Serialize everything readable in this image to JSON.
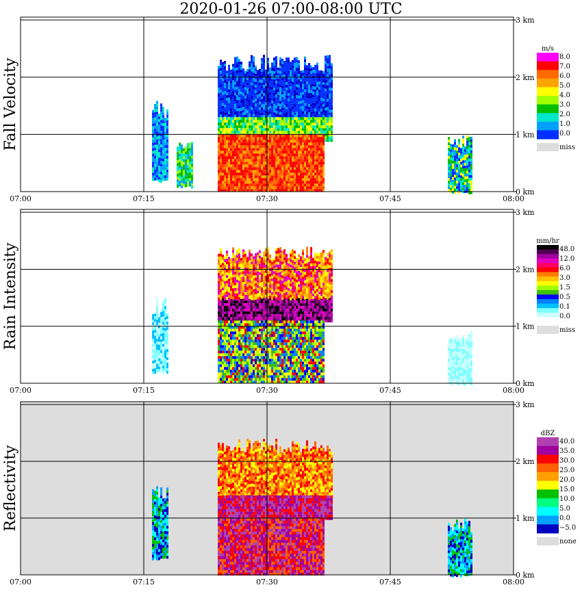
{
  "title": "2020-01-26   07:00-08:00 UTC",
  "x_ticks": [
    "07:00",
    "07:15",
    "07:30",
    "07:45",
    "08:00"
  ],
  "y_ticks": [
    "0 km",
    "1 km",
    "2 km",
    "3 km"
  ],
  "chart_data": [
    {
      "type": "heatmap",
      "title": "Fall Velocity",
      "ylabel": "Fall Velocity",
      "xlim": [
        "07:00",
        "08:00"
      ],
      "ylim": [
        0,
        3.0
      ],
      "grid": true,
      "legend": {
        "unit": "m/s",
        "placement": "right",
        "labels": [
          "8.0",
          "7.0",
          "6.0",
          "5.0",
          "4.0",
          "3.0",
          "2.0",
          "1.0",
          "0.0",
          "miss"
        ],
        "colors": [
          "#ff00ff",
          "#ff0000",
          "#ff6a00",
          "#ffa500",
          "#ffff00",
          "#a0ff00",
          "#00c000",
          "#00e8c8",
          "#00a0ff",
          "#0030ff",
          "#dddddd"
        ]
      },
      "regions": [
        {
          "name": "echo-left-1",
          "x": [
            "07:16",
            "07:18"
          ],
          "y": [
            0.2,
            1.6
          ],
          "value": "1.0-2.0"
        },
        {
          "name": "echo-left-2",
          "x": [
            "07:19",
            "07:21"
          ],
          "y": [
            0.1,
            0.9
          ],
          "value": "2.0-5.0"
        },
        {
          "name": "main-upper",
          "x": [
            "07:24",
            "07:38"
          ],
          "y": [
            1.2,
            2.4
          ],
          "value": "0.0-2.0"
        },
        {
          "name": "main-middle",
          "x": [
            "07:24",
            "07:38"
          ],
          "y": [
            0.9,
            1.3
          ],
          "value": "3.0-5.0"
        },
        {
          "name": "main-core",
          "x": [
            "07:24",
            "07:37"
          ],
          "y": [
            0.0,
            1.0
          ],
          "value": "6.0-7.0"
        },
        {
          "name": "echo-right",
          "x": [
            "07:52",
            "07:55"
          ],
          "y": [
            0.0,
            1.0
          ],
          "value": "1.0-6.0"
        }
      ]
    },
    {
      "type": "heatmap",
      "title": "Rain Intensity",
      "ylabel": "Rain Intensity",
      "xlim": [
        "07:00",
        "08:00"
      ],
      "ylim": [
        0,
        3.0
      ],
      "grid": true,
      "legend": {
        "unit": "mm/hr",
        "placement": "right",
        "labels": [
          "48.0",
          "12.0",
          "6.0",
          "3.0",
          "1.5",
          "0.5",
          "0.1",
          "0.0",
          "miss"
        ],
        "colors": [
          "#000000",
          "#500050",
          "#a000a0",
          "#e000c0",
          "#ff0060",
          "#ff0000",
          "#ff8000",
          "#ffc000",
          "#ffff00",
          "#a0ff00",
          "#40c000",
          "#0000ff",
          "#0080ff",
          "#00c0ff",
          "#80ffff",
          "#c8ffff",
          "#ffffff",
          "#dddddd"
        ]
      },
      "regions": [
        {
          "name": "echo-left",
          "x": [
            "07:16",
            "07:18"
          ],
          "y": [
            0.2,
            1.5
          ],
          "value": "0.1-0.5"
        },
        {
          "name": "bright-band",
          "x": [
            "07:24",
            "07:38"
          ],
          "y": [
            1.1,
            1.5
          ],
          "value": "12.0-48.0"
        },
        {
          "name": "main-upper",
          "x": [
            "07:24",
            "07:38"
          ],
          "y": [
            1.5,
            2.4
          ],
          "value": "1.5-6.0"
        },
        {
          "name": "main-lower",
          "x": [
            "07:24",
            "07:37"
          ],
          "y": [
            0.0,
            1.1
          ],
          "value": "0.5-6.0"
        },
        {
          "name": "echo-right",
          "x": [
            "07:52",
            "07:55"
          ],
          "y": [
            0.0,
            1.0
          ],
          "value": "0.1"
        }
      ]
    },
    {
      "type": "heatmap",
      "title": "Reflectivity",
      "ylabel": "Reflectivity",
      "xlim": [
        "07:00",
        "08:00"
      ],
      "ylim": [
        0,
        3.0
      ],
      "grid": true,
      "legend": {
        "unit": "dBZ",
        "placement": "right",
        "labels": [
          "40.0",
          "35.0",
          "30.0",
          "25.0",
          "20.0",
          "15.0",
          "10.0",
          "5.0",
          "0.0",
          "−5.0",
          "none"
        ],
        "colors": [
          "#b040b0",
          "#a000a0",
          "#ff0000",
          "#ff6000",
          "#ffa000",
          "#ffff00",
          "#00c000",
          "#00ff80",
          "#00ffff",
          "#00a0ff",
          "#0000c0",
          "#dddddd"
        ]
      },
      "regions": [
        {
          "name": "echo-left",
          "x": [
            "07:16",
            "07:18"
          ],
          "y": [
            0.3,
            1.6
          ],
          "value": "0.0-10.0"
        },
        {
          "name": "main-upper",
          "x": [
            "07:24",
            "07:38"
          ],
          "y": [
            1.4,
            2.4
          ],
          "value": "15.0-30.0"
        },
        {
          "name": "bright-band",
          "x": [
            "07:24",
            "07:38"
          ],
          "y": [
            1.0,
            1.4
          ],
          "value": "35.0-40.0"
        },
        {
          "name": "main-lower",
          "x": [
            "07:24",
            "07:37"
          ],
          "y": [
            0.0,
            1.0
          ],
          "value": "30.0-40.0"
        },
        {
          "name": "echo-right",
          "x": [
            "07:52",
            "07:55"
          ],
          "y": [
            0.0,
            1.0
          ],
          "value": "0.0-10.0"
        }
      ]
    }
  ]
}
